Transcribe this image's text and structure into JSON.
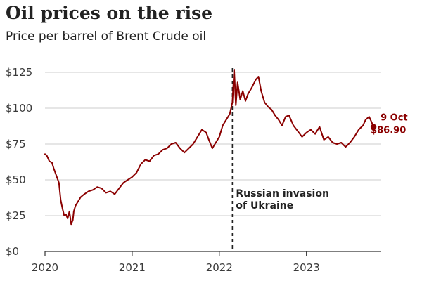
{
  "header": {
    "title": "Oil prices on the rise",
    "subtitle": "Price per barrel of Brent Crude oil"
  },
  "chart_data": {
    "type": "line",
    "title": "Oil prices on the rise",
    "subtitle": "Price per barrel of Brent Crude oil",
    "xlabel": "",
    "ylabel": "",
    "x_unit": "year",
    "xlim": [
      2020,
      2023.85
    ],
    "ylim": [
      0,
      125
    ],
    "grid": true,
    "y_ticks": [
      {
        "value": 0,
        "label": "$0"
      },
      {
        "value": 25,
        "label": "$25"
      },
      {
        "value": 50,
        "label": "$50"
      },
      {
        "value": 75,
        "label": "$75"
      },
      {
        "value": 100,
        "label": "$100"
      },
      {
        "value": 125,
        "label": "$125"
      }
    ],
    "x_ticks": [
      {
        "value": 2020,
        "label": "2020"
      },
      {
        "value": 2021,
        "label": "2021"
      },
      {
        "value": 2022,
        "label": "2022"
      },
      {
        "value": 2023,
        "label": "2023"
      }
    ],
    "series": [
      {
        "color": "#8b0000",
        "x": [
          2020.0,
          2020.02,
          2020.05,
          2020.08,
          2020.1,
          2020.13,
          2020.16,
          2020.18,
          2020.2,
          2020.22,
          2020.24,
          2020.26,
          2020.28,
          2020.3,
          2020.32,
          2020.33,
          2020.35,
          2020.38,
          2020.41,
          2020.45,
          2020.5,
          2020.55,
          2020.6,
          2020.65,
          2020.7,
          2020.75,
          2020.8,
          2020.85,
          2020.9,
          2020.95,
          2021.0,
          2021.05,
          2021.1,
          2021.15,
          2021.2,
          2021.25,
          2021.3,
          2021.35,
          2021.4,
          2021.45,
          2021.5,
          2021.55,
          2021.6,
          2021.65,
          2021.7,
          2021.75,
          2021.8,
          2021.85,
          2021.88,
          2021.92,
          2021.96,
          2022.0,
          2022.04,
          2022.08,
          2022.12,
          2022.15,
          2022.17,
          2022.19,
          2022.21,
          2022.24,
          2022.27,
          2022.3,
          2022.33,
          2022.37,
          2022.42,
          2022.45,
          2022.48,
          2022.52,
          2022.56,
          2022.6,
          2022.64,
          2022.68,
          2022.72,
          2022.76,
          2022.8,
          2022.85,
          2022.9,
          2022.95,
          2023.0,
          2023.05,
          2023.1,
          2023.15,
          2023.2,
          2023.25,
          2023.3,
          2023.35,
          2023.4,
          2023.45,
          2023.5,
          2023.55,
          2023.6,
          2023.65,
          2023.68,
          2023.72,
          2023.75,
          2023.77
        ],
        "values": [
          68,
          67,
          63,
          62,
          58,
          53,
          48,
          36,
          30,
          25,
          26,
          23,
          28,
          19,
          22,
          28,
          32,
          35,
          38,
          40,
          42,
          43,
          45,
          44,
          41,
          42,
          40,
          44,
          48,
          50,
          52,
          55,
          61,
          64,
          63,
          67,
          68,
          71,
          72,
          75,
          76,
          72,
          69,
          72,
          75,
          80,
          85,
          83,
          78,
          72,
          76,
          80,
          88,
          92,
          96,
          104,
          127,
          102,
          118,
          106,
          112,
          105,
          110,
          114,
          120,
          122,
          112,
          104,
          101,
          99,
          95,
          92,
          88,
          94,
          95,
          88,
          84,
          80,
          83,
          85,
          82,
          87,
          78,
          80,
          76,
          75,
          76,
          73,
          76,
          80,
          85,
          88,
          92,
          94,
          90,
          86.9
        ]
      }
    ],
    "annotations": [
      {
        "x": 2022.15,
        "lines": [
          "Russian invasion",
          "of Ukraine"
        ]
      }
    ],
    "end_label": {
      "date": "9 Oct",
      "value_label": "$86.90",
      "x": 2023.77,
      "y": 86.9
    }
  }
}
